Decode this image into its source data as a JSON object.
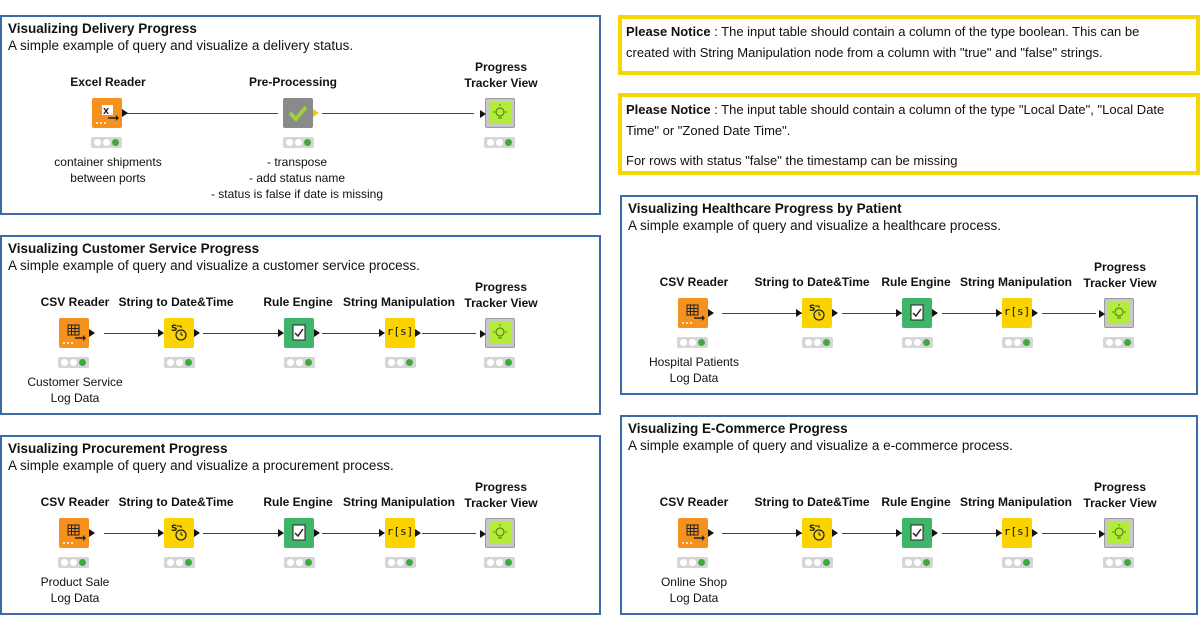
{
  "annotations": {
    "delivery": {
      "title": "Visualizing Delivery Progress",
      "desc": "A simple example of query and visualize a delivery status."
    },
    "customer": {
      "title": "Visualizing Customer Service Progress",
      "desc": "A simple example of query and visualize a customer service process."
    },
    "procurement": {
      "title": "Visualizing Procurement Progress",
      "desc": "A simple example of query and visualize a procurement process."
    },
    "healthcare": {
      "title": "Visualizing Healthcare Progress by Patient",
      "desc": "A simple example of query and visualize a healthcare process."
    },
    "ecommerce": {
      "title": "Visualizing E-Commerce Progress",
      "desc": "A simple example of query and visualize a e-commerce process."
    }
  },
  "notices": {
    "n1": {
      "label": "Please Notice",
      "text": " : The input table should contain a column of the type boolean. This can be created with String Manipulation node from a column with \"true\" and \"false\" strings."
    },
    "n2": {
      "label": "Please Notice",
      "text": " : The input table should contain a column of the type \"Local Date\", \"Local Date Time\" or \"Zoned Date Time\".",
      "line2": "For rows with status \"false\" the timestamp can be missing"
    }
  },
  "nodes": {
    "excel_reader": "Excel Reader",
    "pre_processing": "Pre-Processing",
    "csv_reader": "CSV Reader",
    "string_to_datetime": "String to Date&Time",
    "rule_engine": "Rule Engine",
    "string_manipulation": "String Manipulation",
    "progress_tracker_1": "Progress",
    "progress_tracker_2": "Tracker View"
  },
  "notes": {
    "delivery_reader_1": "container shipments",
    "delivery_reader_2": "between ports",
    "preproc_1": "- transpose",
    "preproc_2": "- add status name",
    "preproc_3": "- status is false if date is missing",
    "customer_1": "Customer Service",
    "customer_2": "Log Data",
    "procurement_1": "Product Sale",
    "procurement_2": "Log Data",
    "healthcare_1": "Hospital Patients",
    "healthcare_2": "Log Data",
    "ecommerce_1": "Online Shop",
    "ecommerce_2": "Log Data"
  },
  "icons": {
    "excel": "excel-reader-icon",
    "csv": "csv-reader-icon",
    "datetime": "date-time-icon",
    "rule": "rule-engine-icon",
    "stringmanip": "string-manipulation-icon",
    "stringmanip_glyph": "r[s]",
    "check": "check-icon",
    "bulb": "lightbulb-icon"
  },
  "colors": {
    "annotation_border": "#3c6aa8",
    "notice_border": "#f5d800",
    "source_node": "#f5921e",
    "manipulator_node": "#fbd301",
    "rule_node": "#3fb56a",
    "status_ok": "#3fa93f"
  }
}
